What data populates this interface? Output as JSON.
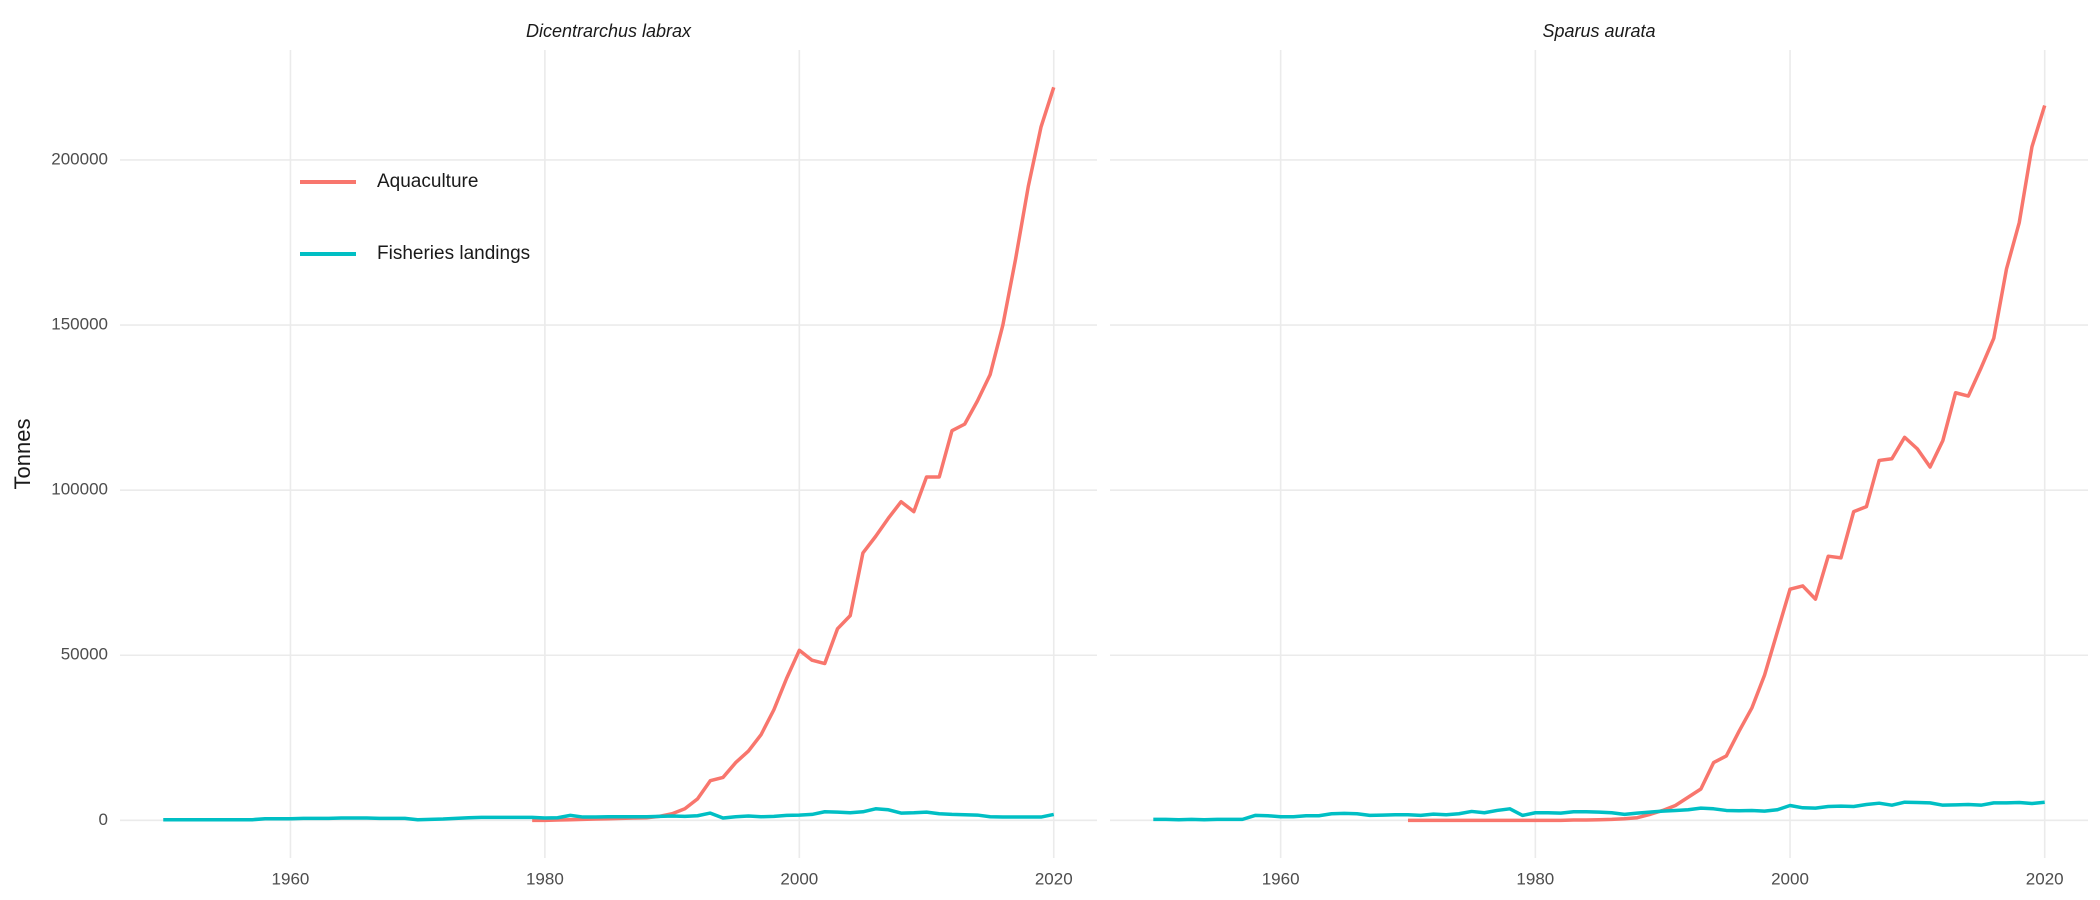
{
  "chart_data": [
    {
      "type": "line",
      "title": "Dicentrarchus labrax",
      "y_label": "Tonnes",
      "x": [
        1950,
        1951,
        1952,
        1953,
        1954,
        1955,
        1956,
        1957,
        1958,
        1959,
        1960,
        1961,
        1962,
        1963,
        1964,
        1965,
        1966,
        1967,
        1968,
        1969,
        1970,
        1971,
        1972,
        1973,
        1974,
        1975,
        1976,
        1977,
        1978,
        1979,
        1980,
        1981,
        1982,
        1983,
        1984,
        1985,
        1986,
        1987,
        1988,
        1989,
        1990,
        1991,
        1992,
        1993,
        1994,
        1995,
        1996,
        1997,
        1998,
        1999,
        2000,
        2001,
        2002,
        2003,
        2004,
        2005,
        2006,
        2007,
        2008,
        2009,
        2010,
        2011,
        2012,
        2013,
        2014,
        2015,
        2016,
        2017,
        2018,
        2019,
        2020
      ],
      "series": [
        {
          "name": "Aquaculture",
          "color": "#F8766D",
          "values": [
            null,
            null,
            null,
            null,
            null,
            null,
            null,
            null,
            null,
            null,
            null,
            null,
            null,
            null,
            null,
            null,
            null,
            null,
            null,
            null,
            null,
            null,
            null,
            null,
            null,
            null,
            null,
            null,
            null,
            0,
            0,
            100,
            200,
            300,
            400,
            500,
            600,
            700,
            800,
            1200,
            2000,
            3500,
            6500,
            12000,
            13000,
            17500,
            21000,
            26000,
            33500,
            43000,
            51500,
            48500,
            47500,
            58000,
            62000,
            81000,
            86000,
            91500,
            96500,
            93500,
            104000,
            104000,
            118000,
            120000,
            127000,
            135000,
            150000,
            170000,
            192000,
            210000,
            222000
          ]
        },
        {
          "name": "Fisheries landings",
          "color": "#00BFC4",
          "values": [
            200,
            200,
            200,
            200,
            200,
            200,
            200,
            200,
            500,
            500,
            500,
            600,
            600,
            600,
            700,
            700,
            700,
            600,
            600,
            600,
            200,
            300,
            400,
            600,
            800,
            900,
            900,
            900,
            900,
            900,
            700,
            800,
            1500,
            1000,
            1000,
            1100,
            1100,
            1100,
            1100,
            1200,
            1300,
            1200,
            1400,
            2200,
            700,
            1100,
            1300,
            1100,
            1200,
            1500,
            1600,
            1800,
            2600,
            2500,
            2300,
            2600,
            3500,
            3200,
            2200,
            2300,
            2500,
            2000,
            1800,
            1700,
            1600,
            1100,
            1000,
            1000,
            1000,
            1000,
            1800
          ]
        }
      ],
      "xlim": [
        1946.6,
        2023.4
      ],
      "xticks": [
        1960,
        1980,
        2000,
        2020
      ],
      "ylim": [
        -11400,
        233300
      ],
      "yticks": [
        0,
        50000,
        100000,
        150000,
        200000
      ],
      "grid": true,
      "legend": "top-left"
    },
    {
      "type": "line",
      "title": "Sparus aurata",
      "x": [
        1950,
        1951,
        1952,
        1953,
        1954,
        1955,
        1956,
        1957,
        1958,
        1959,
        1960,
        1961,
        1962,
        1963,
        1964,
        1965,
        1966,
        1967,
        1968,
        1969,
        1970,
        1971,
        1972,
        1973,
        1974,
        1975,
        1976,
        1977,
        1978,
        1979,
        1980,
        1981,
        1982,
        1983,
        1984,
        1985,
        1986,
        1987,
        1988,
        1989,
        1990,
        1991,
        1992,
        1993,
        1994,
        1995,
        1996,
        1997,
        1998,
        1999,
        2000,
        2001,
        2002,
        2003,
        2004,
        2005,
        2006,
        2007,
        2008,
        2009,
        2010,
        2011,
        2012,
        2013,
        2014,
        2015,
        2016,
        2017,
        2018,
        2019,
        2020
      ],
      "series": [
        {
          "name": "Aquaculture",
          "color": "#F8766D",
          "values": [
            null,
            null,
            null,
            null,
            null,
            null,
            null,
            null,
            null,
            null,
            null,
            null,
            null,
            null,
            null,
            null,
            null,
            null,
            null,
            null,
            0,
            0,
            0,
            0,
            0,
            0,
            0,
            0,
            0,
            0,
            0,
            0,
            0,
            100,
            100,
            200,
            300,
            500,
            800,
            1800,
            3000,
            4500,
            7000,
            9500,
            17500,
            19500,
            27000,
            34000,
            44000,
            57000,
            70000,
            71000,
            67000,
            80000,
            79500,
            93500,
            95000,
            109000,
            109500,
            116000,
            112500,
            107000,
            115000,
            129500,
            128500,
            137000,
            146000,
            167000,
            181000,
            204000,
            216500
          ]
        },
        {
          "name": "Fisheries landings",
          "color": "#00BFC4",
          "values": [
            300,
            300,
            200,
            300,
            200,
            300,
            300,
            300,
            1500,
            1400,
            1100,
            1100,
            1400,
            1400,
            2000,
            2100,
            2000,
            1500,
            1600,
            1700,
            1700,
            1500,
            1900,
            1700,
            2000,
            2700,
            2300,
            3000,
            3500,
            1500,
            2300,
            2300,
            2200,
            2600,
            2600,
            2500,
            2300,
            1800,
            2200,
            2500,
            2800,
            3000,
            3200,
            3700,
            3500,
            3000,
            2900,
            3000,
            2800,
            3200,
            4500,
            3800,
            3700,
            4200,
            4300,
            4200,
            4800,
            5200,
            4600,
            5500,
            5400,
            5300,
            4600,
            4700,
            4800,
            4600,
            5300,
            5300,
            5400,
            5100,
            5500
          ]
        }
      ],
      "xlim": [
        1946.6,
        2023.4
      ],
      "xticks": [
        1960,
        1980,
        2000,
        2020
      ],
      "ylim": [
        -11400,
        233300
      ],
      "yticks": [
        0,
        50000,
        100000,
        150000,
        200000
      ],
      "grid": true
    }
  ]
}
